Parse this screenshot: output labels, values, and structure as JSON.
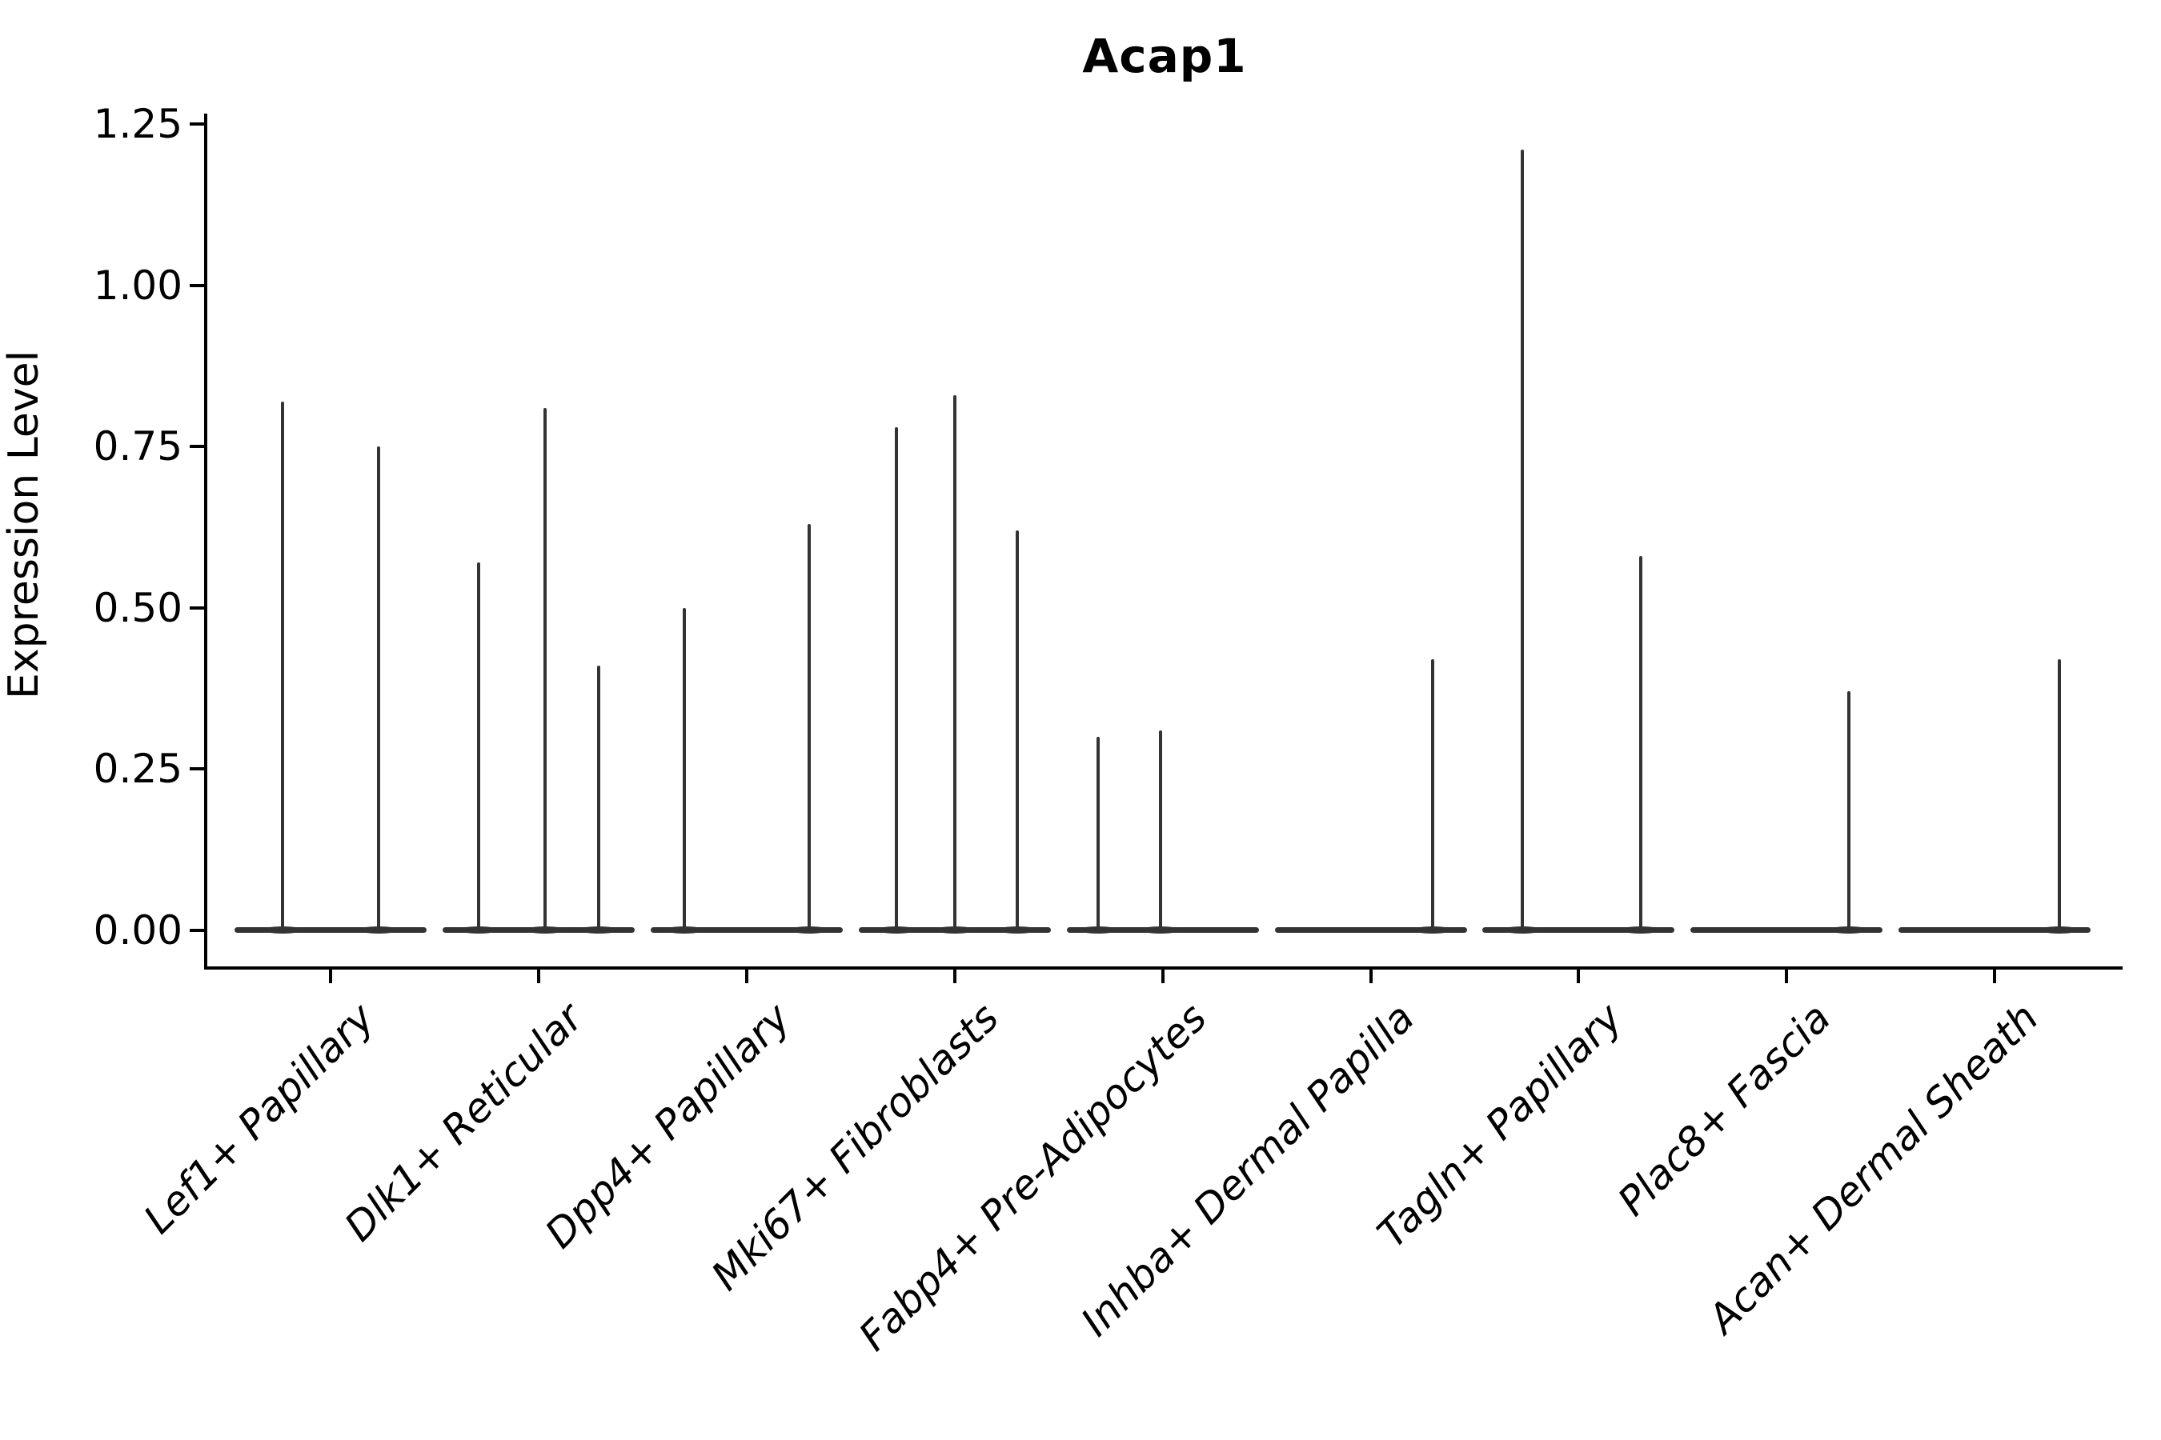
{
  "figure": {
    "title": "Acap1",
    "background": "#ffffff"
  },
  "y_axis": {
    "label": "Expression Level",
    "ticks": [
      {
        "label": "0.00",
        "value": 0.0
      },
      {
        "label": "0.25",
        "value": 0.25
      },
      {
        "label": "0.50",
        "value": 0.5
      },
      {
        "label": "0.75",
        "value": 0.75
      },
      {
        "label": "1.00",
        "value": 1.0
      },
      {
        "label": "1.25",
        "value": 1.25
      }
    ]
  },
  "x_axis": {
    "categories": [
      "Lef1+ Papillary",
      "Dlk1+ Reticular",
      "Dpp4+ Papillary",
      "Mki67+ Fibroblasts",
      "Fabp4+ Pre-Adipocytes",
      "Inhba+ Dermal Papilla",
      "Tagln+ Papillary",
      "Plac8+ Fascia",
      "Acan+ Dermal Sheath"
    ]
  },
  "colors": {
    "ink": "#000000",
    "violin": "#333333"
  },
  "chart_data": {
    "type": "violin",
    "title": "Acap1",
    "xlabel": "",
    "ylabel": "Expression Level",
    "ylim": [
      -0.06,
      1.27
    ],
    "yticks": [
      0.0,
      0.25,
      0.5,
      0.75,
      1.0,
      1.25
    ],
    "grid": false,
    "legend": "none",
    "categories": [
      "Lef1+ Papillary",
      "Dlk1+ Reticular",
      "Dpp4+ Papillary",
      "Mki67+ Fibroblasts",
      "Fabp4+ Pre-Adipocytes",
      "Inhba+ Dermal Papilla",
      "Tagln+ Papillary",
      "Plac8+ Fascia",
      "Acan+ Dermal Sheath"
    ],
    "baseline_value": 0,
    "series": [
      {
        "name": "Lef1+ Papillary",
        "spikes": [
          {
            "offset": -0.23,
            "value": 0.82
          },
          {
            "offset": 0.23,
            "value": 0.75
          }
        ]
      },
      {
        "name": "Dlk1+ Reticular",
        "spikes": [
          {
            "offset": -0.29,
            "value": 0.57
          },
          {
            "offset": 0.03,
            "value": 0.81
          },
          {
            "offset": 0.29,
            "value": 0.41
          }
        ]
      },
      {
        "name": "Dpp4+ Papillary",
        "spikes": [
          {
            "offset": -0.3,
            "value": 0.5
          },
          {
            "offset": 0.3,
            "value": 0.63
          }
        ]
      },
      {
        "name": "Mki67+ Fibroblasts",
        "spikes": [
          {
            "offset": -0.28,
            "value": 0.78
          },
          {
            "offset": 0.0,
            "value": 0.83
          },
          {
            "offset": 0.3,
            "value": 0.62
          }
        ]
      },
      {
        "name": "Fabp4+ Pre-Adipocytes",
        "spikes": [
          {
            "offset": -0.31,
            "value": 0.3
          },
          {
            "offset": -0.01,
            "value": 0.31
          }
        ]
      },
      {
        "name": "Inhba+ Dermal Papilla",
        "spikes": [
          {
            "offset": 0.3,
            "value": 0.42
          }
        ]
      },
      {
        "name": "Tagln+ Papillary",
        "spikes": [
          {
            "offset": -0.27,
            "value": 1.21
          },
          {
            "offset": 0.3,
            "value": 0.58
          }
        ]
      },
      {
        "name": "Plac8+ Fascia",
        "spikes": [
          {
            "offset": 0.3,
            "value": 0.37
          }
        ]
      },
      {
        "name": "Acan+ Dermal Sheath",
        "spikes": [
          {
            "offset": 0.31,
            "value": 0.42
          }
        ]
      }
    ]
  }
}
